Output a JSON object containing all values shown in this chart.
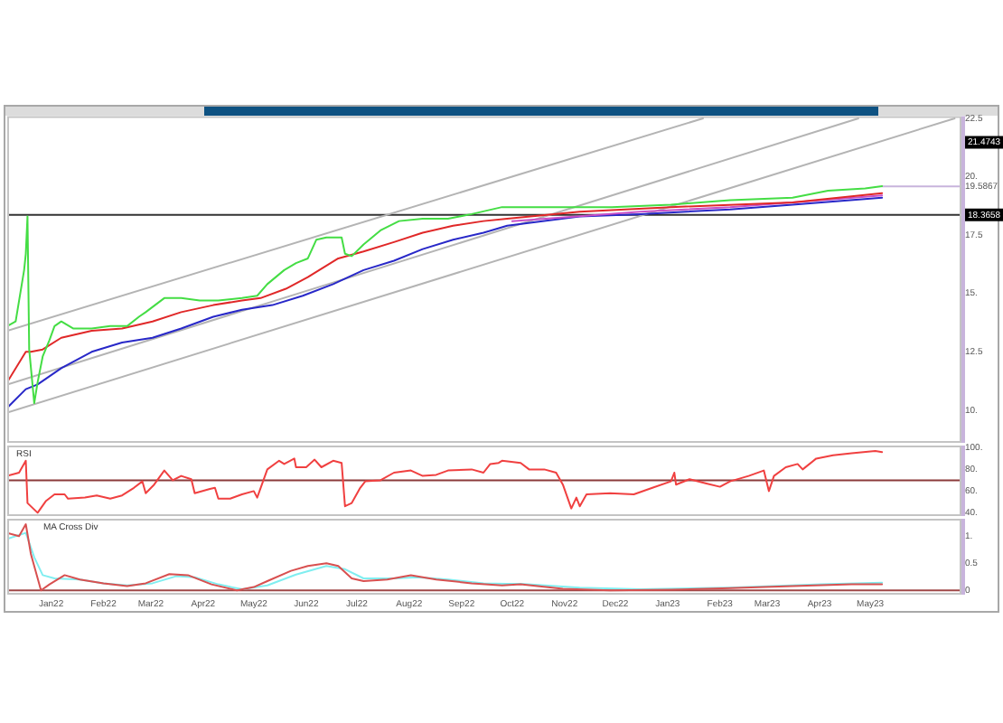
{
  "chart_data": [
    {
      "type": "line",
      "x": [
        "2021-12-06",
        "2021-12-11",
        "2021-12-16",
        "2021-12-17",
        "2021-12-18",
        "2021-12-19",
        "2021-12-22",
        "2021-12-24",
        "2021-12-27",
        "2021-12-31",
        "2022-01-03",
        "2022-01-07",
        "2022-01-14",
        "2022-01-25",
        "2022-02-05",
        "2022-02-15",
        "2022-02-22",
        "2022-02-26",
        "2022-03-09",
        "2022-03-19",
        "2022-03-30",
        "2022-04-10",
        "2022-04-24",
        "2022-05-03",
        "2022-05-09",
        "2022-05-19",
        "2022-05-26",
        "2022-06-02",
        "2022-06-07",
        "2022-06-13",
        "2022-06-22",
        "2022-06-24",
        "2022-06-28",
        "2022-07-05",
        "2022-07-15",
        "2022-07-26",
        "2022-08-09",
        "2022-08-24",
        "2022-09-07",
        "2022-09-25",
        "2022-10-23",
        "2022-11-29",
        "2023-01-03",
        "2023-02-07",
        "2023-03-16",
        "2023-04-06",
        "2023-04-28",
        "2023-05-08"
      ],
      "series": [
        {
          "color": "#44dd44",
          "values": [
            13.6,
            13.8,
            16.0,
            16.7,
            18.3,
            12.6,
            10.3,
            11.2,
            12.3,
            13.0,
            13.6,
            13.8,
            13.5,
            13.5,
            13.6,
            13.6,
            14.0,
            14.2,
            14.8,
            14.8,
            14.7,
            14.7,
            14.8,
            14.9,
            15.4,
            16.0,
            16.3,
            16.5,
            17.3,
            17.4,
            17.4,
            16.7,
            16.6,
            17.1,
            17.7,
            18.1,
            18.2,
            18.2,
            18.4,
            18.7,
            18.7,
            18.7,
            18.8,
            19.0,
            19.1,
            19.4,
            19.5,
            19.6
          ]
        },
        {
          "color": "#e02828",
          "x": [
            "2021-12-06",
            "2021-12-17",
            "2021-12-20",
            "2021-12-27",
            "2022-01-07",
            "2022-01-25",
            "2022-02-12",
            "2022-03-02",
            "2022-03-19",
            "2022-04-07",
            "2022-04-24",
            "2022-05-05",
            "2022-05-20",
            "2022-06-02",
            "2022-06-20",
            "2022-07-05",
            "2022-07-23",
            "2022-08-09",
            "2022-08-27",
            "2022-09-14",
            "2022-09-28",
            "2022-11-10",
            "2023-01-03",
            "2023-03-16",
            "2023-05-08"
          ],
          "values": [
            11.2,
            12.5,
            12.5,
            12.6,
            13.1,
            13.4,
            13.5,
            13.8,
            14.2,
            14.5,
            14.7,
            14.8,
            15.2,
            15.7,
            16.5,
            16.8,
            17.2,
            17.6,
            17.9,
            18.1,
            18.2,
            18.5,
            18.7,
            18.9,
            19.3
          ]
        },
        {
          "color": "#c850c8",
          "x": [
            "2022-10-01",
            "2022-12-16",
            "2023-02-07",
            "2023-03-16",
            "2023-05-08"
          ],
          "values": [
            18.1,
            18.5,
            18.7,
            18.9,
            19.2
          ]
        },
        {
          "color": "#2828c8",
          "x": [
            "2021-12-06",
            "2021-12-17",
            "2021-12-24",
            "2022-01-07",
            "2022-01-25",
            "2022-02-12",
            "2022-03-02",
            "2022-03-19",
            "2022-04-07",
            "2022-04-24",
            "2022-05-12",
            "2022-05-30",
            "2022-06-17",
            "2022-07-05",
            "2022-07-23",
            "2022-08-09",
            "2022-08-27",
            "2022-09-14",
            "2022-09-28",
            "2022-11-10",
            "2022-12-16",
            "2023-02-07",
            "2023-03-16",
            "2023-05-08"
          ],
          "values": [
            10.1,
            10.9,
            11.1,
            11.8,
            12.5,
            12.9,
            13.1,
            13.5,
            14.0,
            14.3,
            14.5,
            14.9,
            15.4,
            16.0,
            16.4,
            16.9,
            17.3,
            17.6,
            17.9,
            18.3,
            18.4,
            18.6,
            18.8,
            19.1
          ]
        },
        {
          "color": "#c8b4dc",
          "x": [
            "2023-05-08",
            "2023-06-24"
          ],
          "values": [
            19.5867,
            19.5867
          ]
        },
        {
          "color": "#b4b4b4",
          "x": [
            "2021-12-06",
            "2023-01-22"
          ],
          "values": [
            13.4,
            22.5
          ]
        },
        {
          "color": "#b4b4b4",
          "x": [
            "2021-12-06",
            "2023-04-24"
          ],
          "values": [
            11.1,
            22.5
          ]
        },
        {
          "color": "#b4b4b4",
          "x": [
            "2021-12-06",
            "2023-06-20"
          ],
          "values": [
            9.9,
            22.5
          ]
        }
      ],
      "xlim": [
        "2021-12-06",
        "2023-06-24"
      ],
      "ylim": [
        8.6,
        22.6
      ],
      "yticks": [
        {
          "value": 10,
          "label": "10."
        },
        {
          "value": 12.5,
          "label": "12.5"
        },
        {
          "value": 15,
          "label": "15."
        },
        {
          "value": 17.5,
          "label": "17.5"
        },
        {
          "value": 19.5867,
          "label": "19.5867"
        },
        {
          "value": 20,
          "label": "20."
        },
        {
          "value": 22.5,
          "label": "22.5"
        }
      ],
      "ref_lines": [
        {
          "axis": "y",
          "value": 18.3658,
          "label": "18.3658",
          "color": "#333333"
        }
      ],
      "annotations": [
        {
          "text": "21.4743",
          "y": 21.4743
        }
      ],
      "tick_labels": "y"
    },
    {
      "type": "line",
      "title": "RSI",
      "color": "#f04040",
      "x": [
        "2021-12-06",
        "2021-12-13",
        "2021-12-17",
        "2021-12-18",
        "2021-12-24",
        "2021-12-29",
        "2022-01-03",
        "2022-01-09",
        "2022-01-11",
        "2022-01-21",
        "2022-01-28",
        "2022-02-05",
        "2022-02-12",
        "2022-02-19",
        "2022-02-24",
        "2022-02-26",
        "2022-03-03",
        "2022-03-09",
        "2022-03-14",
        "2022-03-19",
        "2022-03-25",
        "2022-03-27",
        "2022-04-05",
        "2022-04-08",
        "2022-04-10",
        "2022-04-17",
        "2022-04-24",
        "2022-05-01",
        "2022-05-03",
        "2022-05-09",
        "2022-05-16",
        "2022-05-19",
        "2022-05-25",
        "2022-05-26",
        "2022-06-01",
        "2022-06-06",
        "2022-06-10",
        "2022-06-17",
        "2022-06-22",
        "2022-06-24",
        "2022-06-28",
        "2022-07-03",
        "2022-07-06",
        "2022-07-15",
        "2022-07-23",
        "2022-08-02",
        "2022-08-09",
        "2022-08-17",
        "2022-08-24",
        "2022-09-07",
        "2022-09-14",
        "2022-09-18",
        "2022-09-23",
        "2022-09-25",
        "2022-10-06",
        "2022-10-11",
        "2022-10-20",
        "2022-10-27",
        "2022-10-31",
        "2022-11-05",
        "2022-11-08",
        "2022-11-10",
        "2022-11-14",
        "2022-11-28",
        "2022-12-12",
        "2022-12-23",
        "2023-01-03",
        "2023-01-05",
        "2023-01-06",
        "2023-01-14",
        "2023-01-24",
        "2023-02-01",
        "2023-02-07",
        "2023-02-18",
        "2023-02-27",
        "2023-03-02",
        "2023-03-05",
        "2023-03-12",
        "2023-03-19",
        "2023-03-22",
        "2023-03-30",
        "2023-04-09",
        "2023-04-20",
        "2023-05-04",
        "2023-05-08"
      ],
      "values": [
        74,
        77,
        88,
        49,
        40,
        51,
        57,
        57,
        53,
        54,
        56,
        53,
        56,
        63,
        69,
        58,
        66,
        79,
        70,
        74,
        71,
        58,
        62,
        63,
        53,
        53,
        57,
        60,
        54,
        80,
        88,
        85,
        90,
        82,
        82,
        89,
        82,
        88,
        86,
        46,
        49,
        63,
        69,
        70,
        77,
        79,
        74,
        75,
        79,
        80,
        77,
        85,
        86,
        88,
        86,
        80,
        80,
        77,
        66,
        44,
        54,
        46,
        57,
        58,
        57,
        63,
        69,
        77,
        66,
        71,
        67,
        64,
        69,
        74,
        79,
        60,
        74,
        82,
        85,
        80,
        90,
        93,
        95,
        97,
        96
      ],
      "xlim": [
        "2021-12-06",
        "2023-06-24"
      ],
      "ylim": [
        37,
        102
      ],
      "yticks": [
        {
          "value": 40,
          "label": "40."
        },
        {
          "value": 60,
          "label": "60."
        },
        {
          "value": 80,
          "label": "80."
        },
        {
          "value": 100,
          "label": "100."
        }
      ],
      "ref_lines": [
        {
          "axis": "y",
          "value": 70,
          "color": "#8b3a3a"
        }
      ],
      "tick_labels": "y"
    },
    {
      "type": "line",
      "title": "MA Cross Div",
      "series": [
        {
          "color": "#d85050",
          "x": [
            "2021-12-06",
            "2021-12-13",
            "2021-12-17",
            "2021-12-20",
            "2021-12-26",
            "2021-12-31",
            "2022-01-09",
            "2022-01-18",
            "2022-02-01",
            "2022-02-15",
            "2022-02-26",
            "2022-03-12",
            "2022-03-23",
            "2022-04-06",
            "2022-04-21",
            "2022-05-01",
            "2022-05-09",
            "2022-05-23",
            "2022-06-02",
            "2022-06-13",
            "2022-06-20",
            "2022-06-28",
            "2022-07-05",
            "2022-07-19",
            "2022-08-02",
            "2022-08-17",
            "2022-09-07",
            "2022-09-25",
            "2022-10-06",
            "2022-10-31",
            "2022-11-28",
            "2023-01-03",
            "2023-02-07",
            "2023-03-16",
            "2023-04-20",
            "2023-05-08"
          ],
          "values": [
            1.06,
            1.0,
            1.22,
            0.67,
            0,
            0.11,
            0.28,
            0.2,
            0.13,
            0.08,
            0.13,
            0.3,
            0.28,
            0.11,
            0,
            0.06,
            0.17,
            0.36,
            0.45,
            0.5,
            0.45,
            0.22,
            0.17,
            0.2,
            0.28,
            0.2,
            0.13,
            0.09,
            0.11,
            0.03,
            0,
            0.01,
            0.04,
            0.08,
            0.11,
            0.11
          ]
        },
        {
          "color": "#80eef0",
          "x": [
            "2021-12-06",
            "2021-12-17",
            "2021-12-22",
            "2021-12-27",
            "2022-01-03",
            "2022-01-18",
            "2022-02-01",
            "2022-02-15",
            "2022-03-02",
            "2022-03-16",
            "2022-03-27",
            "2022-04-10",
            "2022-04-24",
            "2022-05-09",
            "2022-05-26",
            "2022-06-13",
            "2022-06-24",
            "2022-07-05",
            "2022-07-23",
            "2022-08-06",
            "2022-08-24",
            "2022-09-14",
            "2022-09-28",
            "2022-10-06",
            "2022-11-10",
            "2022-12-16",
            "2023-02-07",
            "2023-04-02",
            "2023-05-08"
          ],
          "values": [
            0.95,
            1.06,
            0.61,
            0.28,
            0.22,
            0.2,
            0.13,
            0.09,
            0.13,
            0.26,
            0.24,
            0.11,
            0.02,
            0.09,
            0.29,
            0.45,
            0.39,
            0.22,
            0.22,
            0.24,
            0.2,
            0.13,
            0.12,
            0.12,
            0.05,
            0.02,
            0.05,
            0.11,
            0.14
          ]
        }
      ],
      "xlim": [
        "2021-12-06",
        "2023-06-24"
      ],
      "xticks": [
        {
          "value": "2022-01-01",
          "label": "Jan22"
        },
        {
          "value": "2022-02-01",
          "label": "Feb22"
        },
        {
          "value": "2022-03-01",
          "label": "Mar22"
        },
        {
          "value": "2022-04-01",
          "label": "Apr22"
        },
        {
          "value": "2022-05-01",
          "label": "May22"
        },
        {
          "value": "2022-06-01",
          "label": "Jun22"
        },
        {
          "value": "2022-07-01",
          "label": "Jul22"
        },
        {
          "value": "2022-08-01",
          "label": "Aug22"
        },
        {
          "value": "2022-09-01",
          "label": "Sep22"
        },
        {
          "value": "2022-10-01",
          "label": "Oct22"
        },
        {
          "value": "2022-11-01",
          "label": "Nov22"
        },
        {
          "value": "2022-12-01",
          "label": "Dec22"
        },
        {
          "value": "2023-01-01",
          "label": "Jan23"
        },
        {
          "value": "2023-02-01",
          "label": "Feb23"
        },
        {
          "value": "2023-03-01",
          "label": "Mar23"
        },
        {
          "value": "2023-04-01",
          "label": "Apr23"
        },
        {
          "value": "2023-05-01",
          "label": "May23"
        }
      ],
      "ylim": [
        -0.08,
        1.32
      ],
      "yticks": [
        {
          "value": 0,
          "label": "0"
        },
        {
          "value": 0.5,
          "label": "0.5"
        },
        {
          "value": 1,
          "label": "1."
        }
      ],
      "ref_lines": [
        {
          "axis": "y",
          "value": 0,
          "color": "#a04848"
        }
      ]
    }
  ]
}
